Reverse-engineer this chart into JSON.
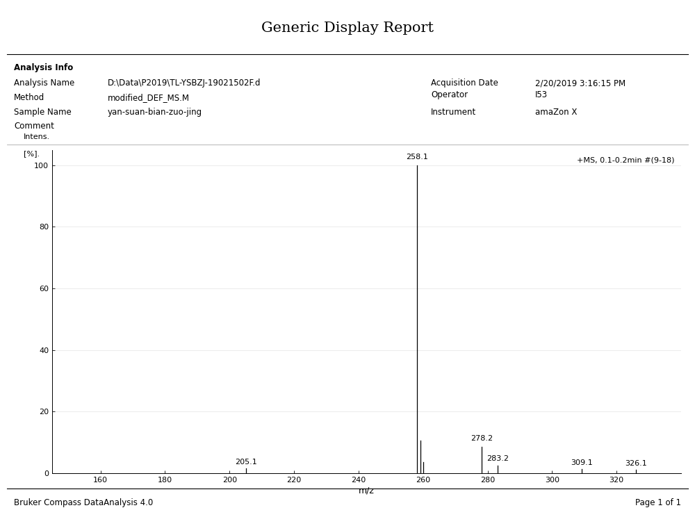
{
  "title": "Generic Display Report",
  "analysis_info_label": "Analysis Info",
  "analysis_name_label": "Analysis Name",
  "analysis_name_value": "D:\\Data\\P2019\\TL-YSBZJ-19021502F.d",
  "method_label": "Method",
  "method_value": "modified_DEF_MS.M",
  "sample_name_label": "Sample Name",
  "sample_name_value": "yan-suan-bian-zuo-jing",
  "comment_label": "Comment",
  "acquisition_date_label": "Acquisition Date",
  "acquisition_date_value": "2/20/2019 3:16:15 PM",
  "operator_label": "Operator",
  "operator_value": "I53",
  "instrument_label": "Instrument",
  "instrument_value": "amaZon X",
  "spectrum_label": "+MS, 0.1-0.2min #(9-18)",
  "xlabel": "m/z",
  "xlim": [
    145,
    340
  ],
  "ylim": [
    0,
    105
  ],
  "xticks": [
    160,
    180,
    200,
    220,
    240,
    260,
    280,
    300,
    320
  ],
  "yticks": [
    0,
    20,
    40,
    60,
    80,
    100
  ],
  "peaks": [
    {
      "mz": 205.1,
      "intensity": 1.5,
      "label": "205.1"
    },
    {
      "mz": 258.1,
      "intensity": 100.0,
      "label": "258.1"
    },
    {
      "mz": 259.1,
      "intensity": 10.5,
      "label": ""
    },
    {
      "mz": 260.1,
      "intensity": 3.5,
      "label": ""
    },
    {
      "mz": 278.2,
      "intensity": 8.5,
      "label": "278.2"
    },
    {
      "mz": 283.2,
      "intensity": 2.5,
      "label": "283.2"
    },
    {
      "mz": 309.1,
      "intensity": 1.2,
      "label": "309.1"
    },
    {
      "mz": 326.1,
      "intensity": 1.0,
      "label": "326.1"
    }
  ],
  "background_color": "#ffffff",
  "plot_bg_color": "#ffffff",
  "footer_left": "Bruker Compass DataAnalysis 4.0",
  "footer_right": "Page 1 of 1"
}
